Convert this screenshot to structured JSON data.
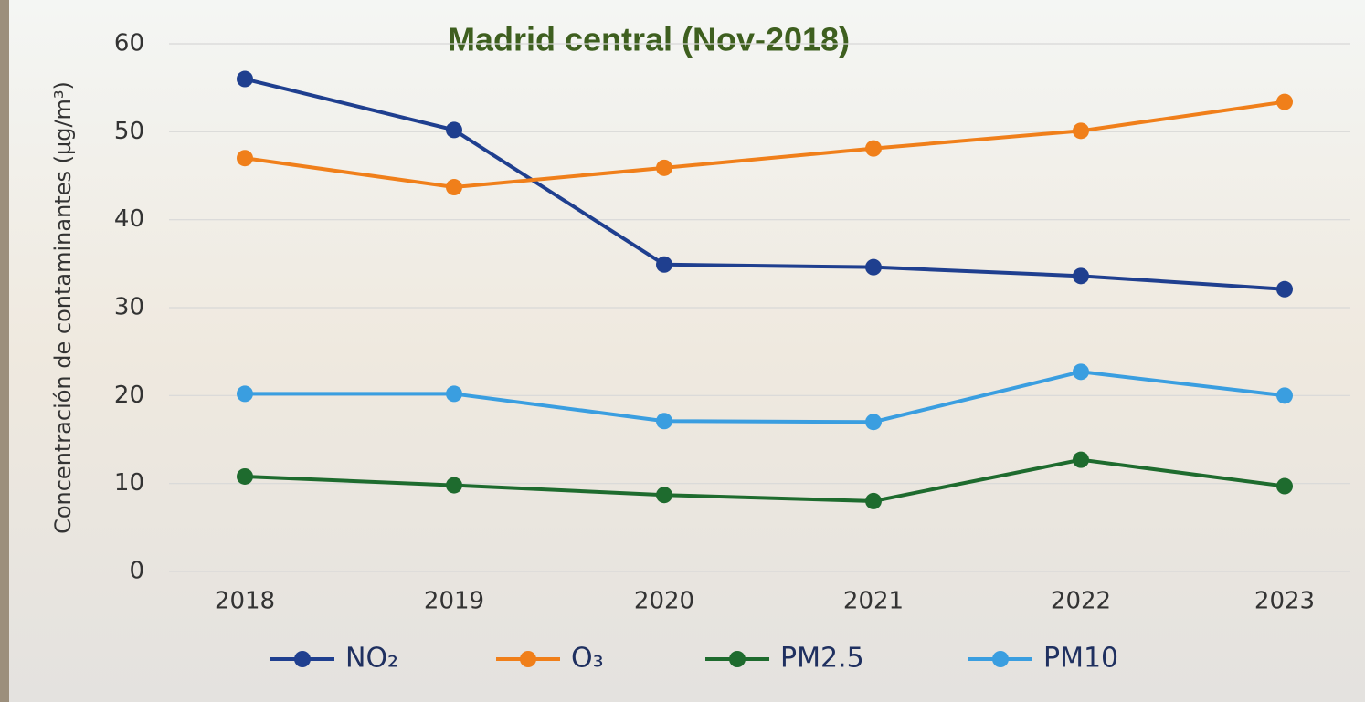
{
  "chart_data": {
    "type": "line",
    "title": "Madrid central (Nov-2018)",
    "y_label": "Concentración de contaminantes (µg/m³)",
    "categories": [
      "2018",
      "2019",
      "2020",
      "2021",
      "2022",
      "2023"
    ],
    "series": [
      {
        "name": "NO₂",
        "color": "#1f3f8f",
        "values": [
          56,
          50.2,
          34.9,
          34.6,
          33.6,
          32.1
        ]
      },
      {
        "name": "O₃",
        "color": "#f07f1a",
        "values": [
          47,
          43.7,
          45.9,
          48.1,
          50.1,
          53.4
        ]
      },
      {
        "name": "PM2.5",
        "color": "#1e6b2e",
        "values": [
          10.8,
          9.8,
          8.7,
          8,
          12.7,
          9.7
        ]
      },
      {
        "name": "PM10",
        "color": "#3a9ee0",
        "values": [
          20.2,
          20.2,
          17.1,
          17,
          22.7,
          20
        ]
      }
    ],
    "ylim": [
      0,
      60
    ],
    "yticks": [
      0,
      10,
      20,
      30,
      40,
      50,
      60
    ],
    "grid": true,
    "legend": "bottom"
  }
}
